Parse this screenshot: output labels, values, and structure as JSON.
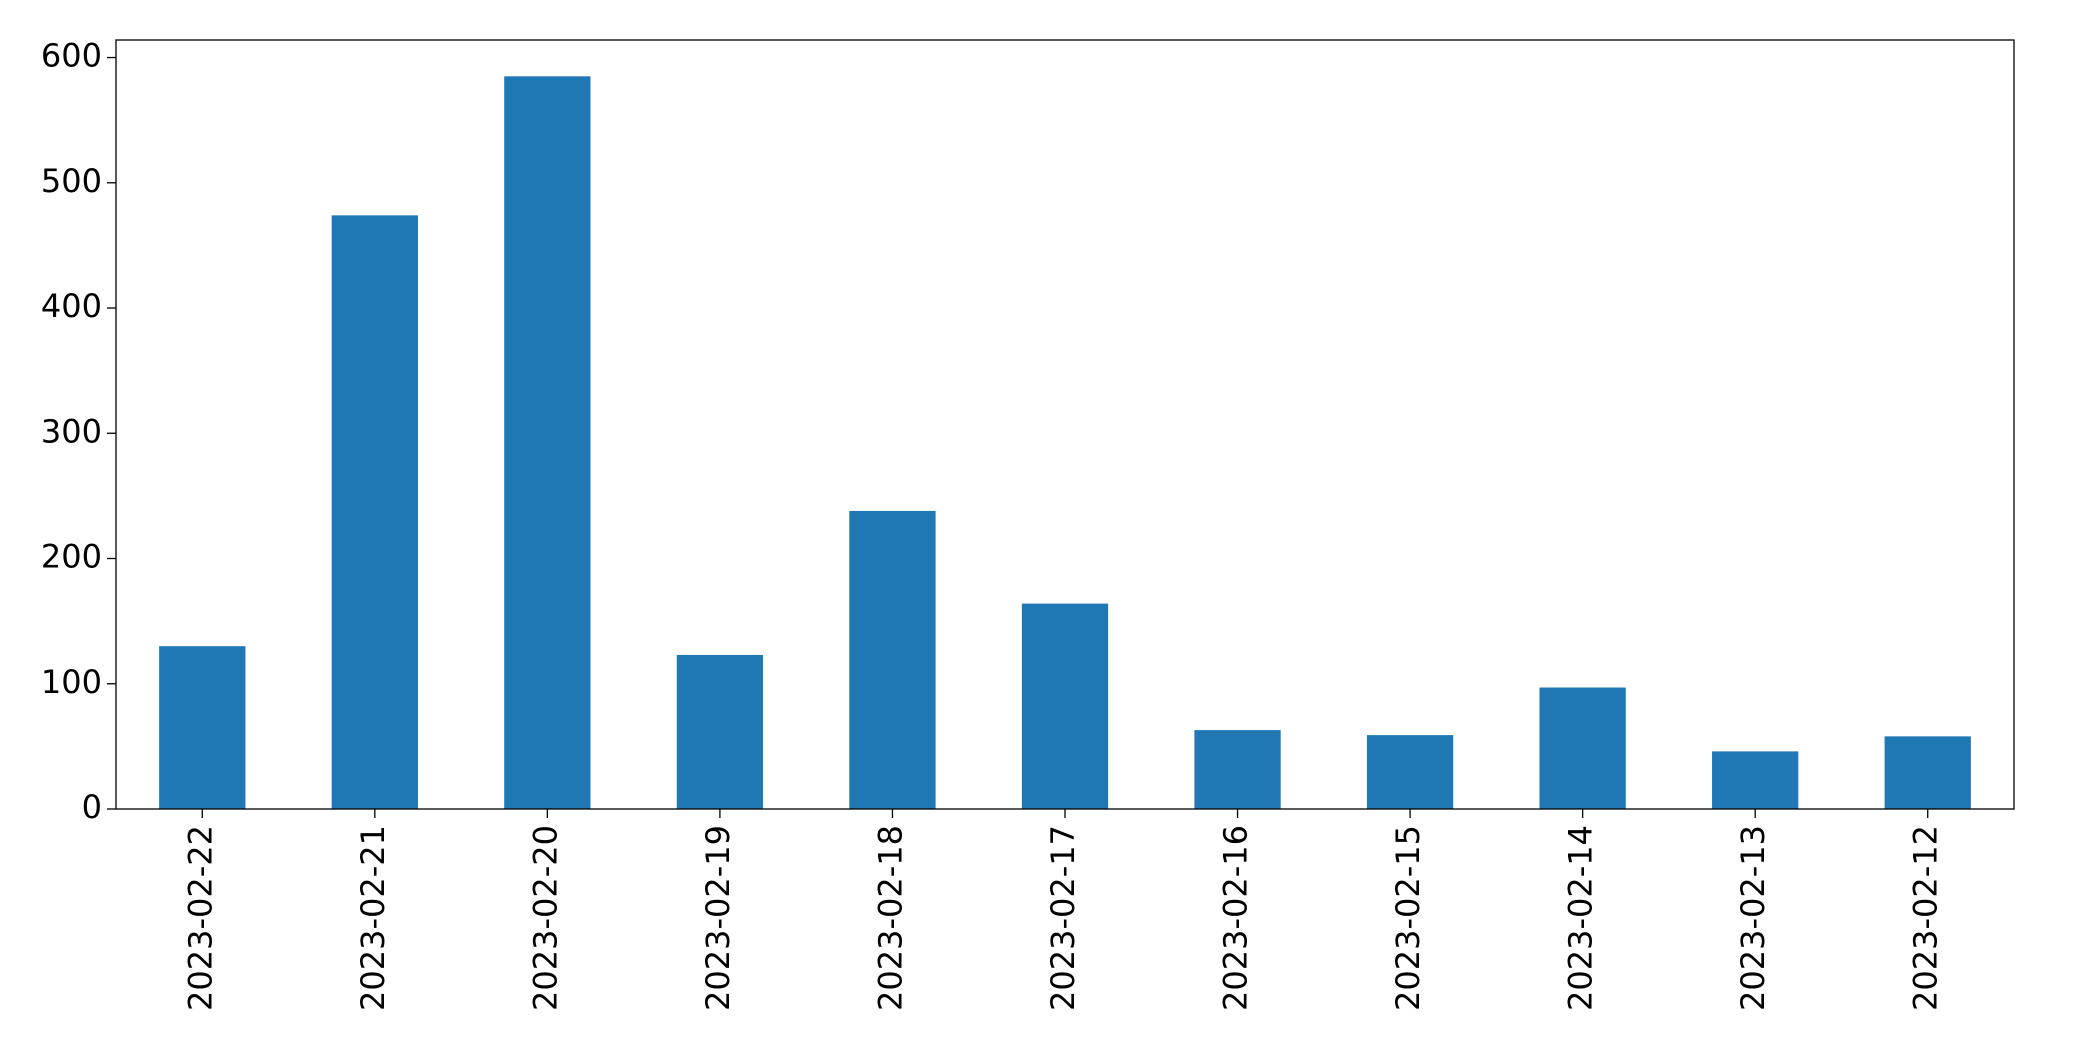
{
  "chart_data": {
    "type": "bar",
    "categories": [
      "2023-02-22",
      "2023-02-21",
      "2023-02-20",
      "2023-02-19",
      "2023-02-18",
      "2023-02-17",
      "2023-02-16",
      "2023-02-15",
      "2023-02-14",
      "2023-02-13",
      "2023-02-12"
    ],
    "values": [
      130,
      474,
      585,
      123,
      238,
      164,
      63,
      59,
      97,
      46,
      58
    ],
    "color": "#1f77b4",
    "ylim": [
      0,
      614
    ],
    "yticks": [
      0,
      100,
      200,
      300,
      400,
      500,
      600
    ],
    "grid": false
  }
}
